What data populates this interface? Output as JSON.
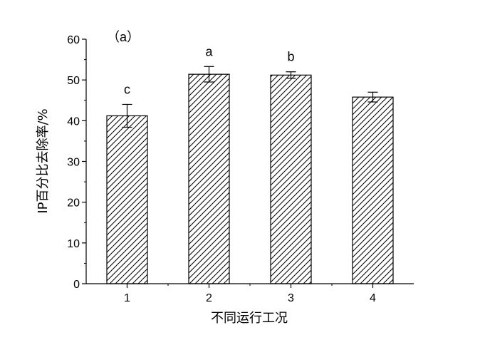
{
  "chart_data": {
    "type": "bar",
    "panel_label": "（a）",
    "categories": [
      "1",
      "2",
      "3",
      "4"
    ],
    "values": [
      41.2,
      51.4,
      51.2,
      45.8
    ],
    "errors": [
      2.8,
      1.9,
      0.8,
      1.2
    ],
    "significance_letters": [
      "c",
      "a",
      "b",
      ""
    ],
    "xlabel": "不同运行工况",
    "ylabel": "IP百分比去除率/%",
    "ylim": [
      0,
      60
    ],
    "yticks": [
      0,
      10,
      20,
      30,
      40,
      50,
      60
    ],
    "grid": false,
    "legend": "none",
    "bar_fill": "hatched",
    "colors": {
      "bar_stroke": "#000000",
      "hatch": "#000000",
      "background": "#ffffff"
    }
  }
}
